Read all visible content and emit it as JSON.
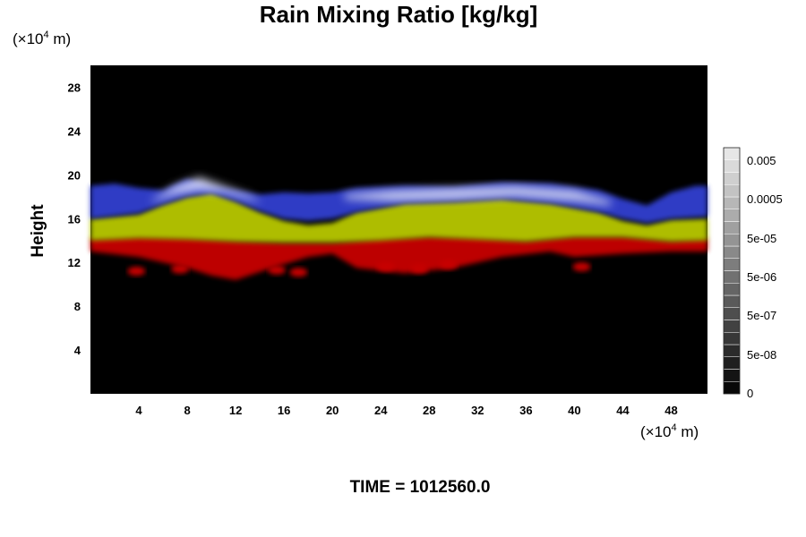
{
  "chart_data": {
    "type": "heatmap",
    "title": "Rain Mixing Ratio [kg/kg]",
    "ylabel": "Height",
    "xlabel": "",
    "x_unit": {
      "prefix": "(×10",
      "exp": "4",
      "suffix": " m)"
    },
    "y_unit": {
      "prefix": "(×10",
      "exp": "4",
      "suffix": " m)"
    },
    "xlim": [
      0,
      51
    ],
    "ylim": [
      0,
      30
    ],
    "x_ticks": [
      4,
      8,
      12,
      16,
      20,
      24,
      28,
      32,
      36,
      40,
      44,
      48
    ],
    "y_ticks": [
      4,
      8,
      12,
      16,
      20,
      24,
      28
    ],
    "colorbar": {
      "tick_labels": [
        "0.005",
        "0.0005",
        "5e-05",
        "5e-06",
        "5e-07",
        "5e-08",
        "0"
      ],
      "levels": 20,
      "scale": "log"
    },
    "bands": [
      {
        "name": "deep-red",
        "color": "#c80000",
        "bottom": [
          [
            0,
            13.0
          ],
          [
            4,
            12.5
          ],
          [
            8,
            11.5
          ],
          [
            10,
            10.8
          ],
          [
            12,
            10.4
          ],
          [
            15,
            11.5
          ],
          [
            18,
            12.5
          ],
          [
            20,
            12.8
          ],
          [
            22,
            11.5
          ],
          [
            26,
            11.0
          ],
          [
            30,
            11.5
          ],
          [
            34,
            12.5
          ],
          [
            38,
            13.0
          ],
          [
            40,
            12.5
          ],
          [
            44,
            12.8
          ],
          [
            48,
            13.0
          ],
          [
            51,
            13.0
          ]
        ],
        "top": [
          [
            0,
            14.2
          ],
          [
            4,
            14.4
          ],
          [
            8,
            14.3
          ],
          [
            12,
            14.0
          ],
          [
            16,
            13.8
          ],
          [
            20,
            13.8
          ],
          [
            24,
            14.2
          ],
          [
            28,
            14.4
          ],
          [
            32,
            14.3
          ],
          [
            36,
            14.0
          ],
          [
            40,
            14.4
          ],
          [
            44,
            14.4
          ],
          [
            48,
            14.0
          ],
          [
            51,
            14.2
          ]
        ]
      },
      {
        "name": "yellow-green",
        "color": "#b8c800",
        "bottom": [
          [
            0,
            14.0
          ],
          [
            4,
            14.2
          ],
          [
            8,
            14.1
          ],
          [
            12,
            13.9
          ],
          [
            16,
            13.8
          ],
          [
            20,
            13.8
          ],
          [
            24,
            14.0
          ],
          [
            28,
            14.3
          ],
          [
            32,
            14.1
          ],
          [
            36,
            13.9
          ],
          [
            40,
            14.3
          ],
          [
            44,
            14.3
          ],
          [
            48,
            13.9
          ],
          [
            51,
            14.0
          ]
        ],
        "top": [
          [
            0,
            16.0
          ],
          [
            4,
            16.4
          ],
          [
            6,
            17.3
          ],
          [
            8,
            18.0
          ],
          [
            10,
            18.4
          ],
          [
            12,
            17.6
          ],
          [
            14,
            16.6
          ],
          [
            16,
            15.8
          ],
          [
            18,
            15.4
          ],
          [
            20,
            15.6
          ],
          [
            22,
            16.6
          ],
          [
            26,
            17.4
          ],
          [
            30,
            17.5
          ],
          [
            34,
            17.8
          ],
          [
            38,
            17.4
          ],
          [
            42,
            16.6
          ],
          [
            44,
            15.8
          ],
          [
            46,
            15.4
          ],
          [
            48,
            15.9
          ],
          [
            51,
            16.0
          ]
        ]
      },
      {
        "name": "blue",
        "color": "#3040d0",
        "bottom": [
          [
            0,
            16.0
          ],
          [
            4,
            16.5
          ],
          [
            6,
            17.3
          ],
          [
            8,
            18.0
          ],
          [
            10,
            18.3
          ],
          [
            12,
            17.6
          ],
          [
            14,
            16.7
          ],
          [
            16,
            16.0
          ],
          [
            18,
            15.8
          ],
          [
            20,
            16.0
          ],
          [
            22,
            16.6
          ],
          [
            26,
            17.4
          ],
          [
            30,
            17.6
          ],
          [
            34,
            17.8
          ],
          [
            38,
            17.4
          ],
          [
            42,
            16.6
          ],
          [
            44,
            16.0
          ],
          [
            46,
            15.6
          ],
          [
            48,
            16.0
          ],
          [
            51,
            16.2
          ]
        ],
        "top": [
          [
            0,
            19.0
          ],
          [
            2,
            19.2
          ],
          [
            4,
            18.8
          ],
          [
            6,
            18.6
          ],
          [
            8,
            19.6
          ],
          [
            10,
            19.0
          ],
          [
            12,
            18.6
          ],
          [
            14,
            18.2
          ],
          [
            16,
            18.4
          ],
          [
            18,
            18.3
          ],
          [
            20,
            18.4
          ],
          [
            22,
            18.8
          ],
          [
            26,
            19.0
          ],
          [
            30,
            18.9
          ],
          [
            34,
            19.3
          ],
          [
            38,
            19.2
          ],
          [
            42,
            18.6
          ],
          [
            44,
            17.8
          ],
          [
            46,
            17.2
          ],
          [
            48,
            18.4
          ],
          [
            50,
            19.0
          ],
          [
            51,
            19.0
          ]
        ]
      },
      {
        "name": "white-top",
        "color": "#e6e8ff",
        "bottom": [
          [
            5,
            17.5
          ],
          [
            7,
            18.2
          ],
          [
            9,
            18.6
          ],
          [
            11,
            18.4
          ],
          [
            13,
            17.8
          ],
          [
            14,
            17.5
          ]
        ],
        "top": [
          [
            5,
            17.6
          ],
          [
            7,
            19.0
          ],
          [
            9,
            19.8
          ],
          [
            11,
            19.0
          ],
          [
            13,
            18.2
          ],
          [
            14,
            17.6
          ]
        ]
      },
      {
        "name": "white-top-2",
        "color": "#dcdff5",
        "bottom": [
          [
            21,
            17.8
          ],
          [
            25,
            17.6
          ],
          [
            30,
            17.7
          ],
          [
            35,
            18.0
          ],
          [
            40,
            17.6
          ],
          [
            43,
            17.2
          ]
        ],
        "top": [
          [
            21,
            18.2
          ],
          [
            25,
            18.6
          ],
          [
            30,
            18.8
          ],
          [
            35,
            19.0
          ],
          [
            40,
            18.6
          ],
          [
            43,
            17.6
          ]
        ]
      }
    ],
    "blobs": [
      {
        "x": 3.8,
        "y": 11.2,
        "value": 0.0003
      },
      {
        "x": 7.4,
        "y": 11.4,
        "value": 0.0003
      },
      {
        "x": 15.4,
        "y": 11.3,
        "value": 0.0003
      },
      {
        "x": 17.2,
        "y": 11.1,
        "value": 0.0003
      },
      {
        "x": 24.4,
        "y": 11.6,
        "value": 0.0003
      },
      {
        "x": 27.2,
        "y": 11.4,
        "value": 0.0003
      },
      {
        "x": 29.6,
        "y": 11.8,
        "value": 0.0003
      },
      {
        "x": 40.6,
        "y": 11.6,
        "value": 0.0003
      }
    ]
  },
  "footer": {
    "time_label": "TIME = 1012560.0"
  },
  "colors": {
    "background": "#ffffff",
    "plot_background": "#000000",
    "red": "#c80000",
    "yellow": "#b8c800",
    "blue": "#3040d0",
    "white": "#e6e8ff"
  }
}
